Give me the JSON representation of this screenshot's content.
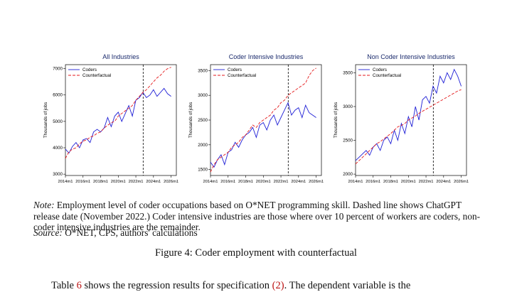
{
  "figure": {
    "caption": "Figure 4: Coder employment with counterfactual",
    "note_label": "Note:",
    "note_text": "Employment level of coder occupations based on O*NET programming skill. Dashed line shows ChatGPT release date (November 2022.) Coder intensive industries are those where over 10 percent of workers are coders, non-coder intensive industries are the remainder.",
    "source_label": "Source:",
    "source_text": "O*NET, CPS, authors' calculations"
  },
  "body_text": {
    "pre": "Table",
    "ref1": "6",
    "mid": "shows the regression results for specification",
    "ref2": "(2)",
    "post": ". The dependent variable is the"
  },
  "colors": {
    "coders": "#1f1fd6",
    "counterfactual": "#e41a1c",
    "title": "#1a2a6c",
    "release_line": "#000000"
  },
  "chart_data": [
    {
      "type": "line",
      "title": "All Industries",
      "ylabel": "Thousands of jobs",
      "ylim": [
        2950,
        7150
      ],
      "yticks": [
        3000,
        4000,
        5000,
        6000,
        7000
      ],
      "xlim": [
        2014.0,
        2026.6
      ],
      "xtick_labels": [
        "2014m1",
        "2016m1",
        "2018m1",
        "2020m1",
        "2022m1",
        "2024m1",
        "2026m1"
      ],
      "xtick_values": [
        2014,
        2016,
        2018,
        2020,
        2022,
        2024,
        2026
      ],
      "release_date": 2022.83,
      "legend": {
        "position": "top-left",
        "entries": [
          "Coders",
          "Counterfactual"
        ]
      },
      "grid": false,
      "series": [
        {
          "name": "Coders",
          "style": "solid",
          "x": [
            2014.0,
            2014.4,
            2014.8,
            2015.2,
            2015.6,
            2016.0,
            2016.4,
            2016.8,
            2017.2,
            2017.6,
            2018.0,
            2018.4,
            2018.8,
            2019.2,
            2019.6,
            2020.0,
            2020.4,
            2020.8,
            2021.2,
            2021.6,
            2022.0,
            2022.4,
            2022.8,
            2023.2,
            2023.6,
            2024.0,
            2024.4,
            2024.8,
            2025.2,
            2025.6,
            2026.0
          ],
          "y": [
            3950,
            3800,
            4050,
            4200,
            4000,
            4300,
            4350,
            4200,
            4600,
            4700,
            4600,
            4750,
            5150,
            4800,
            5200,
            5350,
            5000,
            5300,
            5600,
            5200,
            5800,
            5900,
            6100,
            5900,
            6000,
            6200,
            5950,
            6100,
            6250,
            6050,
            5950
          ]
        },
        {
          "name": "Counterfactual",
          "style": "dashed",
          "x": [
            2014.0,
            2014.4,
            2014.8,
            2015.2,
            2015.6,
            2016.0,
            2016.4,
            2016.8,
            2017.2,
            2017.6,
            2018.0,
            2018.4,
            2018.8,
            2019.2,
            2019.6,
            2020.0,
            2020.4,
            2020.8,
            2021.2,
            2021.6,
            2022.0,
            2022.4,
            2022.8,
            2023.2,
            2023.6,
            2024.0,
            2024.4,
            2024.8,
            2025.2,
            2025.6,
            2026.0
          ],
          "y": [
            3600,
            3850,
            3950,
            4000,
            4150,
            4250,
            4300,
            4400,
            4450,
            4550,
            4600,
            4750,
            4850,
            4950,
            5000,
            5200,
            5300,
            5400,
            5500,
            5600,
            5800,
            5950,
            6100,
            6200,
            6350,
            6500,
            6650,
            6750,
            6900,
            7000,
            7050
          ]
        }
      ]
    },
    {
      "type": "line",
      "title": "Coder Intensive Industries",
      "ylabel": "Thousands of jobs",
      "ylim": [
        1380,
        3620
      ],
      "yticks": [
        1500,
        2000,
        2500,
        3000,
        3500
      ],
      "xlim": [
        2014.0,
        2026.6
      ],
      "xtick_labels": [
        "2014m1",
        "2016m1",
        "2018m1",
        "2020m1",
        "2022m1",
        "2024m1",
        "2026m1"
      ],
      "xtick_values": [
        2014,
        2016,
        2018,
        2020,
        2022,
        2024,
        2026
      ],
      "release_date": 2022.83,
      "legend": {
        "position": "top-left",
        "entries": [
          "Coders",
          "Counterfactual"
        ]
      },
      "grid": false,
      "series": [
        {
          "name": "Coders",
          "style": "solid",
          "x": [
            2014.0,
            2014.4,
            2014.8,
            2015.2,
            2015.6,
            2016.0,
            2016.4,
            2016.8,
            2017.2,
            2017.6,
            2018.0,
            2018.4,
            2018.8,
            2019.2,
            2019.6,
            2020.0,
            2020.4,
            2020.8,
            2021.2,
            2021.6,
            2022.0,
            2022.4,
            2022.8,
            2023.2,
            2023.6,
            2024.0,
            2024.4,
            2024.8,
            2025.2,
            2025.6,
            2026.0
          ],
          "y": [
            1650,
            1550,
            1700,
            1800,
            1600,
            1850,
            1900,
            2050,
            1950,
            2100,
            2200,
            2250,
            2350,
            2150,
            2400,
            2450,
            2300,
            2500,
            2600,
            2400,
            2550,
            2700,
            2850,
            2600,
            2700,
            2750,
            2550,
            2800,
            2650,
            2600,
            2550
          ]
        },
        {
          "name": "Counterfactual",
          "style": "dashed",
          "x": [
            2014.0,
            2014.4,
            2014.8,
            2015.2,
            2015.6,
            2016.0,
            2016.4,
            2016.8,
            2017.2,
            2017.6,
            2018.0,
            2018.4,
            2018.8,
            2019.2,
            2019.6,
            2020.0,
            2020.4,
            2020.8,
            2021.2,
            2021.6,
            2022.0,
            2022.4,
            2022.8,
            2023.2,
            2023.6,
            2024.0,
            2024.4,
            2024.8,
            2025.2,
            2025.6,
            2026.0
          ],
          "y": [
            1450,
            1600,
            1700,
            1750,
            1800,
            1850,
            1950,
            2000,
            2050,
            2150,
            2200,
            2300,
            2400,
            2350,
            2450,
            2500,
            2550,
            2600,
            2700,
            2750,
            2850,
            2900,
            3000,
            3050,
            3100,
            3150,
            3200,
            3250,
            3400,
            3500,
            3550
          ]
        }
      ]
    },
    {
      "type": "line",
      "title": "Non Coder Intensive Industries",
      "ylabel": "Thousands of jobs",
      "ylim": [
        1980,
        3620
      ],
      "yticks": [
        2000,
        2500,
        3000,
        3500
      ],
      "xlim": [
        2014.0,
        2026.6
      ],
      "xtick_labels": [
        "2014m1",
        "2016m1",
        "2018m1",
        "2020m1",
        "2022m1",
        "2024m1",
        "2026m1"
      ],
      "xtick_values": [
        2014,
        2016,
        2018,
        2020,
        2022,
        2024,
        2026
      ],
      "release_date": 2022.83,
      "legend": {
        "position": "top-left",
        "entries": [
          "Coders",
          "Counterfactual"
        ]
      },
      "grid": false,
      "series": [
        {
          "name": "Coders",
          "style": "solid",
          "x": [
            2014.0,
            2014.4,
            2014.8,
            2015.2,
            2015.6,
            2016.0,
            2016.4,
            2016.8,
            2017.2,
            2017.6,
            2018.0,
            2018.4,
            2018.8,
            2019.2,
            2019.6,
            2020.0,
            2020.4,
            2020.8,
            2021.2,
            2021.6,
            2022.0,
            2022.4,
            2022.8,
            2023.2,
            2023.6,
            2024.0,
            2024.4,
            2024.8,
            2025.2,
            2025.6,
            2026.0
          ],
          "y": [
            2200,
            2250,
            2300,
            2350,
            2280,
            2400,
            2450,
            2350,
            2500,
            2550,
            2450,
            2650,
            2500,
            2750,
            2600,
            2850,
            2700,
            3000,
            2800,
            3100,
            3150,
            3050,
            3300,
            3200,
            3450,
            3350,
            3500,
            3400,
            3550,
            3450,
            3300
          ]
        },
        {
          "name": "Counterfactual",
          "style": "dashed",
          "x": [
            2014.0,
            2014.4,
            2014.8,
            2015.2,
            2015.6,
            2016.0,
            2016.4,
            2016.8,
            2017.2,
            2017.6,
            2018.0,
            2018.4,
            2018.8,
            2019.2,
            2019.6,
            2020.0,
            2020.4,
            2020.8,
            2021.2,
            2021.6,
            2022.0,
            2022.4,
            2022.8,
            2023.2,
            2023.6,
            2024.0,
            2024.4,
            2024.8,
            2025.2,
            2025.6,
            2026.0
          ],
          "y": [
            2150,
            2200,
            2250,
            2300,
            2350,
            2400,
            2450,
            2480,
            2520,
            2560,
            2600,
            2650,
            2700,
            2720,
            2750,
            2800,
            2830,
            2860,
            2900,
            2930,
            2960,
            2990,
            3020,
            3050,
            3080,
            3110,
            3140,
            3170,
            3200,
            3230,
            3250
          ]
        }
      ]
    }
  ]
}
